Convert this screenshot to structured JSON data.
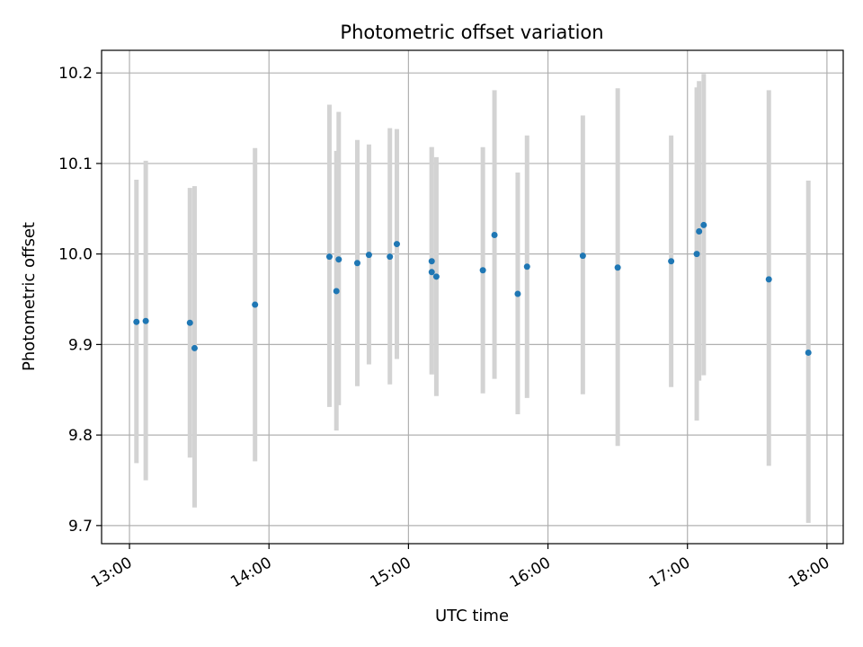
{
  "chart_data": {
    "type": "scatter",
    "title": "Photometric offset variation",
    "xlabel": "UTC time",
    "ylabel": "Photometric offset",
    "xlim": [
      "12:48",
      "18:07"
    ],
    "ylim": [
      9.68,
      10.225
    ],
    "grid": true,
    "x_ticks": [
      "13:00",
      "14:00",
      "15:00",
      "16:00",
      "17:00",
      "18:00"
    ],
    "y_ticks": [
      9.7,
      9.8,
      9.9,
      10.0,
      10.1,
      10.2
    ],
    "y_tick_labels": [
      "9.7",
      "9.8",
      "9.9",
      "10.0",
      "10.1",
      "10.2"
    ],
    "colors": {
      "point": "#1f77b4",
      "errorbar": "#d3d3d3",
      "grid": "#b0b0b0"
    },
    "points": [
      {
        "x": "13:03",
        "y": 9.925,
        "ylow": 9.769,
        "yhigh": 10.082
      },
      {
        "x": "13:07",
        "y": 9.926,
        "ylow": 9.75,
        "yhigh": 10.103
      },
      {
        "x": "13:26",
        "y": 9.924,
        "ylow": 9.775,
        "yhigh": 10.073
      },
      {
        "x": "13:28",
        "y": 9.896,
        "ylow": 9.72,
        "yhigh": 10.075
      },
      {
        "x": "13:54",
        "y": 9.944,
        "ylow": 9.771,
        "yhigh": 10.117
      },
      {
        "x": "14:26",
        "y": 9.997,
        "ylow": 9.831,
        "yhigh": 10.165
      },
      {
        "x": "14:29",
        "y": 9.959,
        "ylow": 9.805,
        "yhigh": 10.114
      },
      {
        "x": "14:30",
        "y": 9.994,
        "ylow": 9.833,
        "yhigh": 10.157
      },
      {
        "x": "14:38",
        "y": 9.99,
        "ylow": 9.854,
        "yhigh": 10.126
      },
      {
        "x": "14:43",
        "y": 9.999,
        "ylow": 9.878,
        "yhigh": 10.121
      },
      {
        "x": "14:52",
        "y": 9.997,
        "ylow": 9.856,
        "yhigh": 10.139
      },
      {
        "x": "14:55",
        "y": 10.011,
        "ylow": 9.884,
        "yhigh": 10.138
      },
      {
        "x": "15:10",
        "y": 9.98,
        "ylow": 9.867,
        "yhigh": 10.118
      },
      {
        "x": "15:10",
        "y": 9.992,
        "ylow": 9.867,
        "yhigh": 10.118
      },
      {
        "x": "15:12",
        "y": 9.975,
        "ylow": 9.843,
        "yhigh": 10.107
      },
      {
        "x": "15:32",
        "y": 9.982,
        "ylow": 9.846,
        "yhigh": 10.118
      },
      {
        "x": "15:37",
        "y": 10.021,
        "ylow": 9.862,
        "yhigh": 10.181
      },
      {
        "x": "15:47",
        "y": 9.956,
        "ylow": 9.823,
        "yhigh": 10.09
      },
      {
        "x": "15:51",
        "y": 9.986,
        "ylow": 9.841,
        "yhigh": 10.131
      },
      {
        "x": "16:15",
        "y": 9.998,
        "ylow": 9.845,
        "yhigh": 10.153
      },
      {
        "x": "16:30",
        "y": 9.985,
        "ylow": 9.788,
        "yhigh": 10.183
      },
      {
        "x": "16:53",
        "y": 9.992,
        "ylow": 9.853,
        "yhigh": 10.131
      },
      {
        "x": "17:04",
        "y": 10.0,
        "ylow": 9.816,
        "yhigh": 10.184
      },
      {
        "x": "17:05",
        "y": 10.025,
        "ylow": 9.86,
        "yhigh": 10.191
      },
      {
        "x": "17:07",
        "y": 10.032,
        "ylow": 9.866,
        "yhigh": 10.199
      },
      {
        "x": "17:35",
        "y": 9.972,
        "ylow": 9.766,
        "yhigh": 10.181
      },
      {
        "x": "17:52",
        "y": 9.891,
        "ylow": 9.703,
        "yhigh": 10.081
      }
    ]
  }
}
